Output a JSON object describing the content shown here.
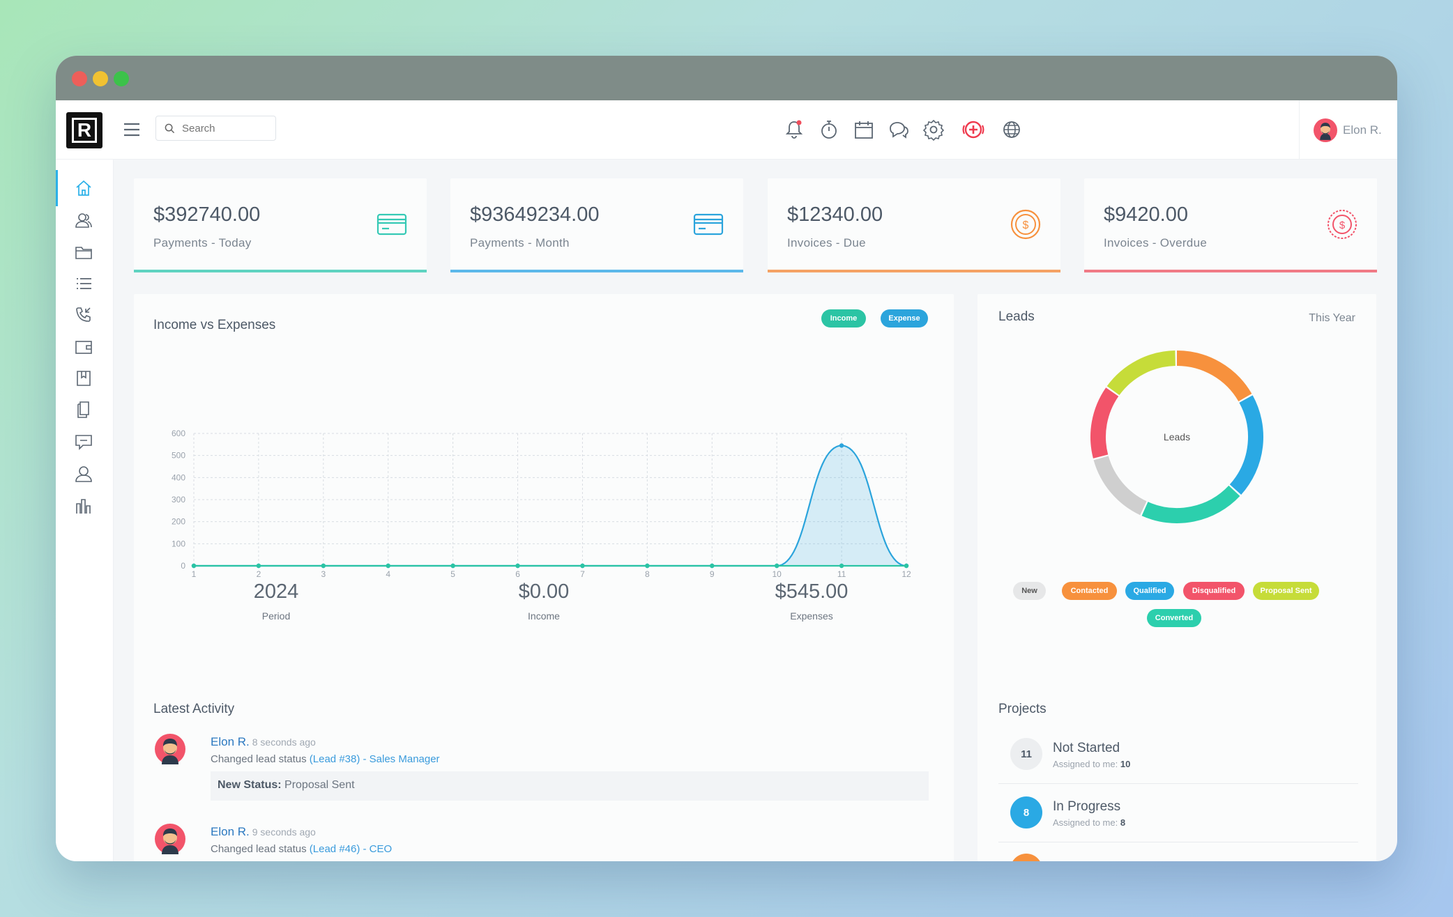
{
  "topbar": {
    "logo_letter": "R",
    "search_placeholder": "Search",
    "user_name": "Elon R."
  },
  "stats": [
    {
      "value": "$392740.00",
      "label": "Payments - Today",
      "color": "#5fd3c1",
      "icon": "credit-card-icon"
    },
    {
      "value": "$93649234.00",
      "label": "Payments - Month",
      "color": "#5cb8ea",
      "icon": "credit-card-icon"
    },
    {
      "value": "$12340.00",
      "label": "Invoices - Due",
      "color": "#f5a265",
      "icon": "dollar-circle-icon"
    },
    {
      "value": "$9420.00",
      "label": "Invoices - Overdue",
      "color": "#f07a86",
      "icon": "dollar-circle-icon"
    }
  ],
  "income_card": {
    "title": "Income vs Expenses",
    "income_label": "Income",
    "expense_label": "Expense",
    "summary": [
      {
        "value": "2024",
        "label": "Period"
      },
      {
        "value": "$0.00",
        "label": "Income"
      },
      {
        "value": "$545.00",
        "label": "Expenses"
      }
    ]
  },
  "chart_data": {
    "type": "area",
    "x": [
      1,
      2,
      3,
      4,
      5,
      6,
      7,
      8,
      9,
      10,
      11,
      12
    ],
    "ylim": [
      0,
      600
    ],
    "yticks": [
      0,
      100,
      200,
      300,
      400,
      500,
      600
    ],
    "series": [
      {
        "name": "Income",
        "color": "#2bc4a4",
        "values": [
          0,
          0,
          0,
          0,
          0,
          0,
          0,
          0,
          0,
          0,
          0,
          0
        ]
      },
      {
        "name": "Expense",
        "color": "#2ba4dc",
        "values": [
          0,
          0,
          0,
          0,
          0,
          0,
          0,
          0,
          0,
          0,
          545,
          0
        ]
      }
    ]
  },
  "leads_card": {
    "title": "Leads",
    "period": "This Year",
    "center_label": "Leads",
    "donut": [
      {
        "name": "Contacted",
        "value": 17,
        "color": "#f7913d"
      },
      {
        "name": "Qualified",
        "value": 20,
        "color": "#2aa9e4"
      },
      {
        "name": "Converted",
        "value": 20,
        "color": "#2ccfad"
      },
      {
        "name": "New",
        "value": 14,
        "color": "#cfcfcf"
      },
      {
        "name": "Disqualified",
        "value": 14,
        "color": "#f2546a"
      },
      {
        "name": "Proposal Sent",
        "value": 15,
        "color": "#c6dc39"
      }
    ],
    "legend": [
      {
        "label": "New",
        "bg": "#e6e7e8",
        "fg": "#555"
      },
      {
        "label": "Contacted",
        "bg": "#f7913d",
        "fg": "#fff"
      },
      {
        "label": "Qualified",
        "bg": "#2aa9e4",
        "fg": "#fff"
      },
      {
        "label": "Disqualified",
        "bg": "#f2546a",
        "fg": "#fff"
      },
      {
        "label": "Proposal Sent",
        "bg": "#c6dc39",
        "fg": "#fff"
      },
      {
        "label": "Converted",
        "bg": "#2ccfad",
        "fg": "#fff"
      }
    ]
  },
  "activity": {
    "title": "Latest Activity",
    "items": [
      {
        "name": "Elon R.",
        "time": "8 seconds ago",
        "action": "Changed lead status",
        "link": "(Lead #38) - Sales Manager",
        "status_label": "New Status:",
        "status_value": "Proposal Sent"
      },
      {
        "name": "Elon R.",
        "time": "9 seconds ago",
        "action": "Changed lead status",
        "link": "(Lead #46) - CEO"
      }
    ]
  },
  "projects": {
    "title": "Projects",
    "items": [
      {
        "count": "11",
        "name": "Not Started",
        "assigned_label": "Assigned to me:",
        "assigned": "10",
        "color": "#eceef0",
        "text_color": "#4d5967"
      },
      {
        "count": "8",
        "name": "In Progress",
        "assigned_label": "Assigned to me:",
        "assigned": "8",
        "color": "#2aa9e4",
        "text_color": "#ffffff"
      }
    ]
  }
}
